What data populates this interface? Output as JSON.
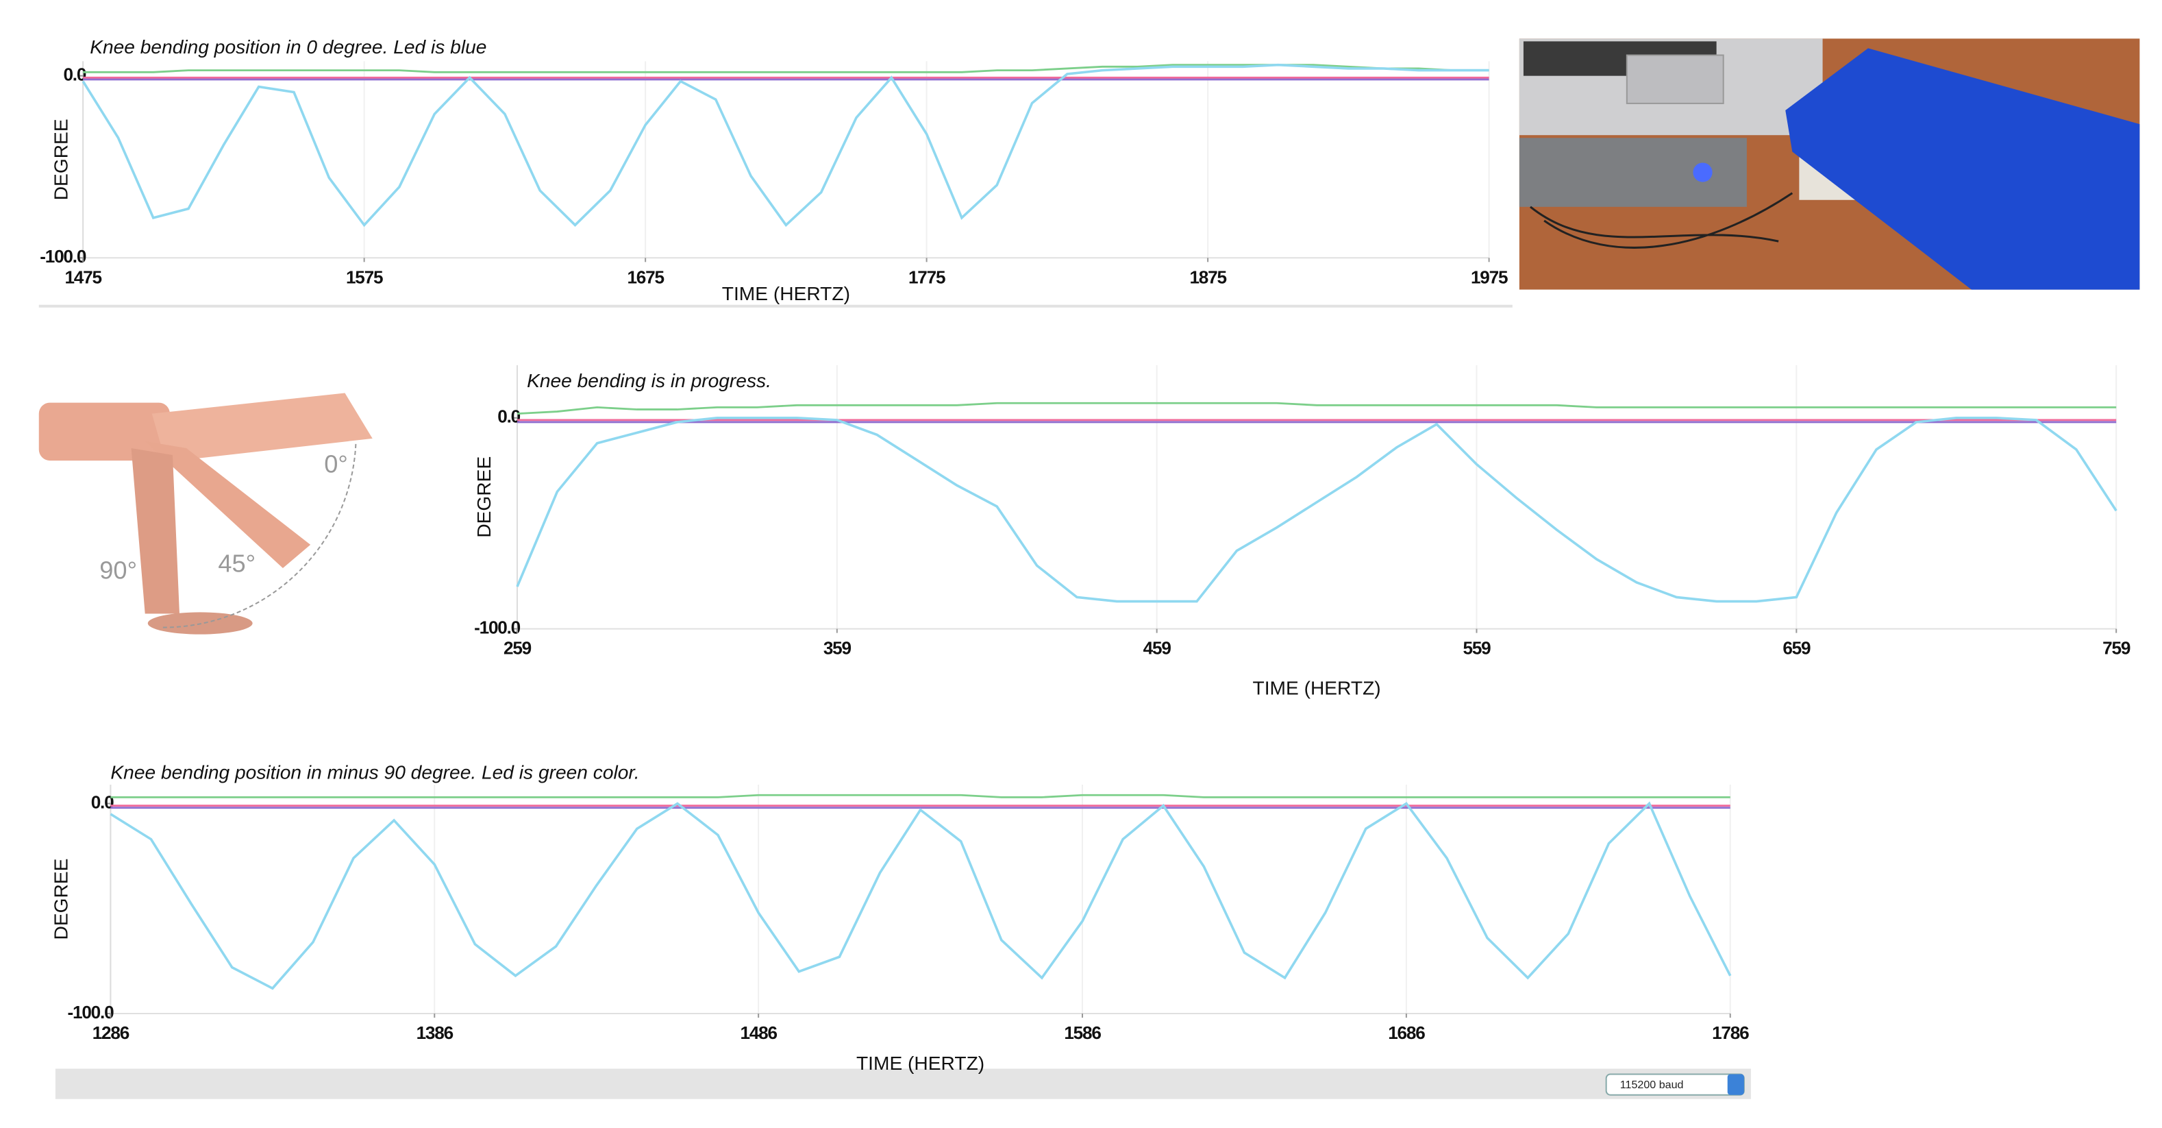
{
  "chart_data": [
    {
      "type": "line",
      "title": "Knee bending position in 0 degree. Led is blue",
      "x_label": "TIME (HERTZ)",
      "y_label": "DEGREE",
      "x": [
        1475,
        1487.5,
        1500,
        1512.5,
        1525,
        1537.5,
        1550,
        1562.5,
        1575,
        1587.5,
        1600,
        1612.5,
        1625,
        1637.5,
        1650,
        1662.5,
        1675,
        1687.5,
        1700,
        1712.5,
        1725,
        1737.5,
        1750,
        1762.5,
        1775,
        1787.5,
        1800,
        1812.5,
        1825,
        1837.5,
        1850,
        1862.5,
        1875,
        1887.5,
        1900,
        1912.5,
        1925,
        1937.5,
        1950,
        1962.5,
        1975
      ],
      "series": [
        {
          "color": "#7ccf8a",
          "values": [
            2,
            2,
            2,
            3,
            3,
            3,
            3,
            3,
            3,
            3,
            2,
            2,
            2,
            2,
            2,
            2,
            2,
            2,
            2,
            2,
            2,
            2,
            2,
            2,
            2,
            2,
            3,
            3,
            4,
            5,
            5,
            6,
            6,
            6,
            6,
            6,
            5,
            4,
            4,
            3,
            3
          ]
        },
        {
          "color": "#8f6fd0",
          "values": [
            -2,
            -2,
            -2,
            -2,
            -2,
            -2,
            -2,
            -2,
            -2,
            -2,
            -2,
            -2,
            -2,
            -2,
            -2,
            -2,
            -2,
            -2,
            -2,
            -2,
            -2,
            -2,
            -2,
            -2,
            -2,
            -2,
            -2,
            -2,
            -2,
            -2,
            -2,
            -2,
            -2,
            -2,
            -2,
            -2,
            -2,
            -2,
            -2,
            -2,
            -2
          ]
        },
        {
          "color": "#f06a9a",
          "values": [
            -1,
            -1,
            -1,
            -1,
            -1,
            -1,
            -1,
            -1,
            -1,
            -1,
            -1,
            -1,
            -1,
            -1,
            -1,
            -1,
            -1,
            -1,
            -1,
            -1,
            -1,
            -1,
            -1,
            -1,
            -1,
            -1,
            -1,
            -1,
            -1,
            -1,
            -1,
            -1,
            -1,
            -1,
            -1,
            -1,
            -1,
            -1,
            -1,
            -1,
            -1
          ]
        },
        {
          "color": "#8fd8f0",
          "values": [
            -3,
            -34,
            -78,
            -73,
            -38,
            -6,
            -9,
            -56,
            -82,
            -61,
            -21,
            -1,
            -21,
            -63,
            -82,
            -63,
            -27,
            -3,
            -13,
            -55,
            -82,
            -64,
            -23,
            -1,
            -32,
            -78,
            -60,
            -15,
            1,
            3,
            4,
            5,
            5,
            5,
            6,
            5,
            4,
            4,
            3,
            3,
            3
          ]
        }
      ],
      "xlim": [
        1475,
        1975
      ],
      "xticks": [
        1475,
        1575,
        1675,
        1775,
        1875,
        1975
      ],
      "ylim": [
        -100,
        8
      ],
      "yticks": [
        {
          "value": 0,
          "label": "0.0"
        },
        {
          "value": -100,
          "label": "-100.0"
        }
      ],
      "grid": true
    },
    {
      "type": "line",
      "title": "Knee bending is in progress.",
      "x_label": "TIME (HERTZ)",
      "y_label": "DEGREE",
      "x": [
        259,
        271.5,
        284,
        296.5,
        309,
        321.5,
        334,
        346.5,
        359,
        371.5,
        384,
        396.5,
        409,
        421.5,
        434,
        446.5,
        459,
        471.5,
        484,
        496.5,
        509,
        521.5,
        534,
        546.5,
        559,
        571.5,
        584,
        596.5,
        609,
        621.5,
        634,
        646.5,
        659,
        671.5,
        684,
        696.5,
        709,
        721.5,
        734,
        746.5,
        759
      ],
      "series": [
        {
          "color": "#7ccf8a",
          "values": [
            2,
            3,
            5,
            4,
            4,
            5,
            5,
            6,
            6,
            6,
            6,
            6,
            7,
            7,
            7,
            7,
            7,
            7,
            7,
            7,
            6,
            6,
            6,
            6,
            6,
            6,
            6,
            5,
            5,
            5,
            5,
            5,
            5,
            5,
            5,
            5,
            5,
            5,
            5,
            5,
            5
          ]
        },
        {
          "color": "#8f6fd0",
          "values": [
            -2,
            -2,
            -2,
            -2,
            -2,
            -2,
            -2,
            -2,
            -2,
            -2,
            -2,
            -2,
            -2,
            -2,
            -2,
            -2,
            -2,
            -2,
            -2,
            -2,
            -2,
            -2,
            -2,
            -2,
            -2,
            -2,
            -2,
            -2,
            -2,
            -2,
            -2,
            -2,
            -2,
            -2,
            -2,
            -2,
            -2,
            -2,
            -2,
            -2,
            -2
          ]
        },
        {
          "color": "#f06a9a",
          "values": [
            -1,
            -1,
            -1,
            -1,
            -1,
            -1,
            -1,
            -1,
            -1,
            -1,
            -1,
            -1,
            -1,
            -1,
            -1,
            -1,
            -1,
            -1,
            -1,
            -1,
            -1,
            -1,
            -1,
            -1,
            -1,
            -1,
            -1,
            -1,
            -1,
            -1,
            -1,
            -1,
            -1,
            -1,
            -1,
            -1,
            -1,
            -1,
            -1,
            -1,
            -1
          ]
        },
        {
          "color": "#8fd8f0",
          "values": [
            -80,
            -35,
            -12,
            -7,
            -2,
            0,
            0,
            0,
            -1,
            -8,
            -20,
            -32,
            -42,
            -70,
            -85,
            -87,
            -87,
            -87,
            -63,
            -52,
            -40,
            -28,
            -14,
            -3,
            -22,
            -38,
            -53,
            -67,
            -78,
            -85,
            -87,
            -87,
            -85,
            -45,
            -15,
            -2,
            0,
            0,
            -1,
            -15,
            -44
          ]
        }
      ],
      "xlim": [
        259,
        759
      ],
      "xticks": [
        259,
        359,
        459,
        559,
        659,
        759
      ],
      "ylim": [
        -100,
        25
      ],
      "yticks": [
        {
          "value": 0,
          "label": "0.0"
        },
        {
          "value": -100,
          "label": "-100.0"
        }
      ],
      "grid": true
    },
    {
      "type": "line",
      "title": "Knee bending position in minus 90 degree. Led is green color.",
      "x_label": "TIME (HERTZ)",
      "y_label": "DEGREE",
      "x": [
        1286,
        1298.5,
        1311,
        1323.5,
        1336,
        1348.5,
        1361,
        1373.5,
        1386,
        1398.5,
        1411,
        1423.5,
        1436,
        1448.5,
        1461,
        1473.5,
        1486,
        1498.5,
        1511,
        1523.5,
        1536,
        1548.5,
        1561,
        1573.5,
        1586,
        1598.5,
        1611,
        1623.5,
        1636,
        1648.5,
        1661,
        1673.5,
        1686,
        1698.5,
        1711,
        1723.5,
        1736,
        1748.5,
        1761,
        1773.5,
        1786
      ],
      "series": [
        {
          "color": "#7ccf8a",
          "values": [
            3,
            3,
            3,
            3,
            3,
            3,
            3,
            3,
            3,
            3,
            3,
            3,
            3,
            3,
            3,
            3,
            4,
            4,
            4,
            4,
            4,
            4,
            3,
            3,
            4,
            4,
            4,
            3,
            3,
            3,
            3,
            3,
            3,
            3,
            3,
            3,
            3,
            3,
            3,
            3,
            3
          ]
        },
        {
          "color": "#8f6fd0",
          "values": [
            -2,
            -2,
            -2,
            -2,
            -2,
            -2,
            -2,
            -2,
            -2,
            -2,
            -2,
            -2,
            -2,
            -2,
            -2,
            -2,
            -2,
            -2,
            -2,
            -2,
            -2,
            -2,
            -2,
            -2,
            -2,
            -2,
            -2,
            -2,
            -2,
            -2,
            -2,
            -2,
            -2,
            -2,
            -2,
            -2,
            -2,
            -2,
            -2,
            -2,
            -2
          ]
        },
        {
          "color": "#f06a9a",
          "values": [
            -1,
            -1,
            -1,
            -1,
            -1,
            -1,
            -1,
            -1,
            -1,
            -1,
            -1,
            -1,
            -1,
            -1,
            -1,
            -1,
            -1,
            -1,
            -1,
            -1,
            -1,
            -1,
            -1,
            -1,
            -1,
            -1,
            -1,
            -1,
            -1,
            -1,
            -1,
            -1,
            -1,
            -1,
            -1,
            -1,
            -1,
            -1,
            -1,
            -1,
            -1
          ]
        },
        {
          "color": "#8fd8f0",
          "values": [
            -5,
            -17,
            -48,
            -78,
            -88,
            -66,
            -26,
            -8,
            -29,
            -67,
            -82,
            -68,
            -39,
            -12,
            0,
            -15,
            -52,
            -80,
            -73,
            -33,
            -3,
            -18,
            -65,
            -83,
            -56,
            -17,
            -1,
            -30,
            -71,
            -83,
            -52,
            -12,
            0,
            -26,
            -64,
            -83,
            -62,
            -19,
            0,
            -44,
            -82
          ]
        }
      ],
      "xlim": [
        1286,
        1786
      ],
      "xticks": [
        1286,
        1386,
        1486,
        1586,
        1686,
        1786
      ],
      "ylim": [
        -100,
        9
      ],
      "yticks": [
        {
          "value": 0,
          "label": "0.0"
        },
        {
          "value": -100,
          "label": "-100.0"
        }
      ],
      "grid": true
    }
  ],
  "figure": {
    "angle_labels": [
      "0°",
      "45°",
      "90°"
    ]
  },
  "ui": {
    "baud": "115200 baud"
  }
}
